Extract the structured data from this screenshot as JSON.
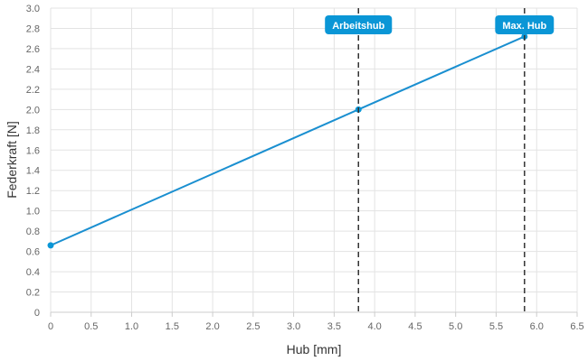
{
  "chart_data": {
    "type": "line",
    "xlabel": "Hub [mm]",
    "ylabel": "Federkraft [N]",
    "xlim": [
      0,
      6.5
    ],
    "ylim": [
      0,
      3.0
    ],
    "x_ticks": [
      "0",
      "0.5",
      "1.0",
      "1.5",
      "2.0",
      "2.5",
      "3.0",
      "3.5",
      "4.0",
      "4.5",
      "5.0",
      "5.5",
      "6.0",
      "6.5"
    ],
    "y_ticks": [
      "0",
      "0.2",
      "0.4",
      "0.6",
      "0.8",
      "1.0",
      "1.2",
      "1.4",
      "1.6",
      "1.8",
      "2.0",
      "2.2",
      "2.4",
      "2.6",
      "2.8",
      "3.0"
    ],
    "grid": true,
    "series": [
      {
        "x": [
          0,
          3.8,
          5.85
        ],
        "y": [
          0.66,
          2.0,
          2.72
        ],
        "color": "#1a8fd0"
      }
    ],
    "markers": [
      {
        "label": "Arbeitshub",
        "x": 3.8
      },
      {
        "label": "Max. Hub",
        "x": 5.85
      }
    ]
  },
  "colors": {
    "line": "#1a8fd0",
    "marker_fill": "#0a96d6",
    "grid": "#e3e3e3",
    "axis": "#cccccc",
    "vline": "#333333"
  }
}
